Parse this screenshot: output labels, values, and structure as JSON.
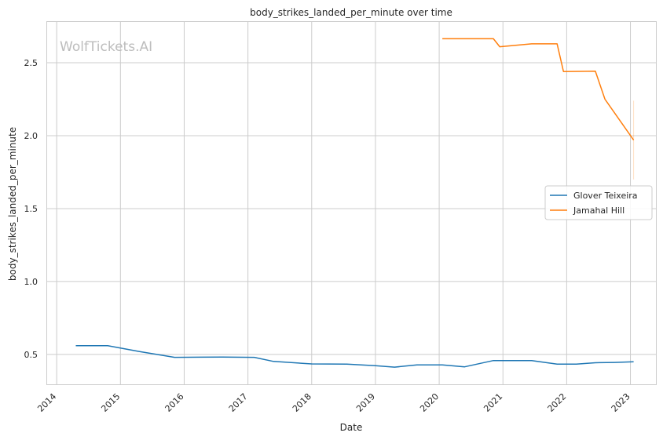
{
  "watermark": "WolfTickets.AI",
  "chart_data": {
    "type": "line",
    "title": "body_strikes_landed_per_minute over time",
    "xlabel": "Date",
    "ylabel": "body_strikes_landed_per_minute",
    "xlim": [
      2013.85,
      2023.4
    ],
    "ylim": [
      0.295,
      2.78
    ],
    "x_ticks": [
      "2014",
      "2015",
      "2016",
      "2017",
      "2018",
      "2019",
      "2020",
      "2021",
      "2022",
      "2023"
    ],
    "y_ticks": [
      "0.5",
      "1.0",
      "1.5",
      "2.0",
      "2.5"
    ],
    "grid": true,
    "legend_position": "center-right",
    "series": [
      {
        "name": "Glover Teixeira",
        "color": "#1f77b4",
        "points": [
          [
            2014.3,
            0.56
          ],
          [
            2014.8,
            0.56
          ],
          [
            2015.3,
            0.52
          ],
          [
            2015.85,
            0.48
          ],
          [
            2016.6,
            0.482
          ],
          [
            2017.1,
            0.48
          ],
          [
            2017.4,
            0.452
          ],
          [
            2018.0,
            0.435
          ],
          [
            2018.55,
            0.433
          ],
          [
            2019.0,
            0.423
          ],
          [
            2019.3,
            0.413
          ],
          [
            2019.65,
            0.428
          ],
          [
            2020.05,
            0.428
          ],
          [
            2020.4,
            0.415
          ],
          [
            2020.85,
            0.458
          ],
          [
            2021.45,
            0.458
          ],
          [
            2021.85,
            0.433
          ],
          [
            2022.15,
            0.433
          ],
          [
            2022.45,
            0.443
          ],
          [
            2022.75,
            0.445
          ],
          [
            2023.05,
            0.45
          ]
        ]
      },
      {
        "name": "Jamahal Hill",
        "color": "#ff7f0e",
        "points": [
          [
            2020.05,
            2.665
          ],
          [
            2020.85,
            2.665
          ],
          [
            2020.95,
            2.61
          ],
          [
            2021.45,
            2.63
          ],
          [
            2021.85,
            2.63
          ],
          [
            2021.95,
            2.44
          ],
          [
            2022.45,
            2.442
          ],
          [
            2022.6,
            2.25
          ],
          [
            2023.05,
            1.97
          ]
        ],
        "error_bar": {
          "x": 2023.05,
          "low": 1.7,
          "high": 2.24
        }
      }
    ]
  }
}
